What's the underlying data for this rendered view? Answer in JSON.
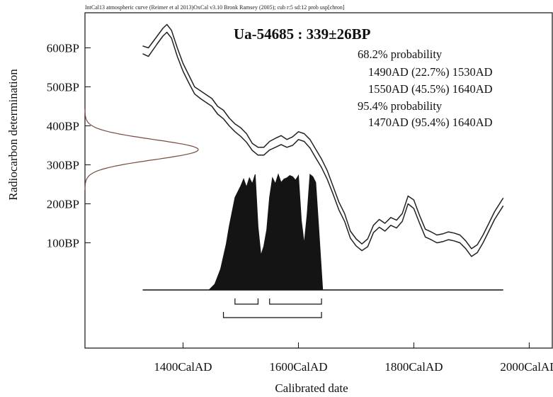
{
  "chart_data": {
    "type": "line",
    "header": "IntCal13 atmospheric curve (Reimer et al 2013)OxCal v3.10 Bronk Ramsey (2005); cub r:5 sd:12 prob usp[chron]",
    "title": "Ua-54685 : 339±26BP",
    "xlabel": "Calibrated date",
    "ylabel": "Radiocarbon determination",
    "xlim": [
      1230,
      2040
    ],
    "ylim": [
      -170,
      690
    ],
    "x_ticks": [
      {
        "value": 1400,
        "label": "1400CalAD"
      },
      {
        "value": 1600,
        "label": "1600CalAD"
      },
      {
        "value": 1800,
        "label": "1800CalAD"
      },
      {
        "value": 2000,
        "label": "2000CalAD"
      }
    ],
    "y_ticks": [
      {
        "value": 100,
        "label": "100BP"
      },
      {
        "value": 200,
        "label": "200BP"
      },
      {
        "value": 300,
        "label": "300BP"
      },
      {
        "value": 400,
        "label": "400BP"
      },
      {
        "value": 500,
        "label": "500BP"
      },
      {
        "value": 600,
        "label": "600BP"
      }
    ],
    "probability_text": [
      "68.2% probability",
      "1490AD (22.7%) 1530AD",
      "1550AD (45.5%) 1640AD",
      "95.4% probability",
      "1470AD (95.4%) 1640AD"
    ],
    "calibration_curve": {
      "x": [
        1330,
        1340,
        1355,
        1365,
        1372,
        1380,
        1390,
        1400,
        1410,
        1420,
        1430,
        1440,
        1450,
        1460,
        1470,
        1480,
        1490,
        1500,
        1510,
        1520,
        1530,
        1540,
        1550,
        1560,
        1570,
        1580,
        1590,
        1600,
        1610,
        1620,
        1630,
        1640,
        1650,
        1660,
        1670,
        1680,
        1690,
        1700,
        1710,
        1720,
        1730,
        1740,
        1750,
        1760,
        1770,
        1780,
        1790,
        1800,
        1810,
        1820,
        1830,
        1840,
        1850,
        1860,
        1870,
        1880,
        1890,
        1900,
        1910,
        1920,
        1930,
        1940,
        1955
      ],
      "upper": [
        605,
        600,
        630,
        650,
        660,
        645,
        600,
        560,
        530,
        500,
        490,
        480,
        470,
        450,
        440,
        420,
        405,
        395,
        380,
        355,
        345,
        345,
        360,
        368,
        375,
        365,
        372,
        385,
        380,
        365,
        340,
        315,
        285,
        245,
        205,
        175,
        130,
        110,
        97,
        110,
        145,
        160,
        150,
        165,
        158,
        175,
        220,
        210,
        170,
        135,
        128,
        120,
        123,
        128,
        125,
        120,
        105,
        85,
        95,
        120,
        150,
        180,
        215
      ],
      "lower": [
        585,
        578,
        610,
        630,
        640,
        625,
        578,
        540,
        510,
        482,
        470,
        460,
        450,
        430,
        418,
        400,
        385,
        373,
        358,
        337,
        325,
        325,
        338,
        345,
        352,
        345,
        350,
        365,
        360,
        343,
        318,
        293,
        263,
        225,
        185,
        155,
        112,
        92,
        80,
        90,
        126,
        140,
        130,
        145,
        138,
        155,
        200,
        188,
        150,
        115,
        108,
        100,
        103,
        108,
        105,
        100,
        85,
        65,
        75,
        100,
        130,
        160,
        195
      ]
    },
    "measured_gaussian": {
      "mean": 339,
      "sd": 26
    },
    "calibrated_distribution": {
      "x": [
        1445,
        1455,
        1465,
        1475,
        1480,
        1490,
        1500,
        1505,
        1510,
        1515,
        1520,
        1525,
        1530,
        1535,
        1540,
        1545,
        1550,
        1555,
        1560,
        1565,
        1570,
        1575,
        1580,
        1585,
        1590,
        1595,
        1600,
        1605,
        1610,
        1615,
        1620,
        1625,
        1630,
        1635,
        1642
      ],
      "prob": [
        0.0,
        0.05,
        0.18,
        0.4,
        0.55,
        0.8,
        0.9,
        0.96,
        0.89,
        0.97,
        0.92,
        1.0,
        0.55,
        0.3,
        0.38,
        0.52,
        0.8,
        0.97,
        0.92,
        1.0,
        0.93,
        0.96,
        0.97,
        0.99,
        0.98,
        0.95,
        0.99,
        0.6,
        0.4,
        0.65,
        1.0,
        0.98,
        0.93,
        0.55,
        0.0
      ]
    },
    "ranges_68": [
      [
        1490,
        1530
      ],
      [
        1550,
        1640
      ]
    ],
    "ranges_95": [
      [
        1470,
        1640
      ]
    ],
    "grid": false
  }
}
